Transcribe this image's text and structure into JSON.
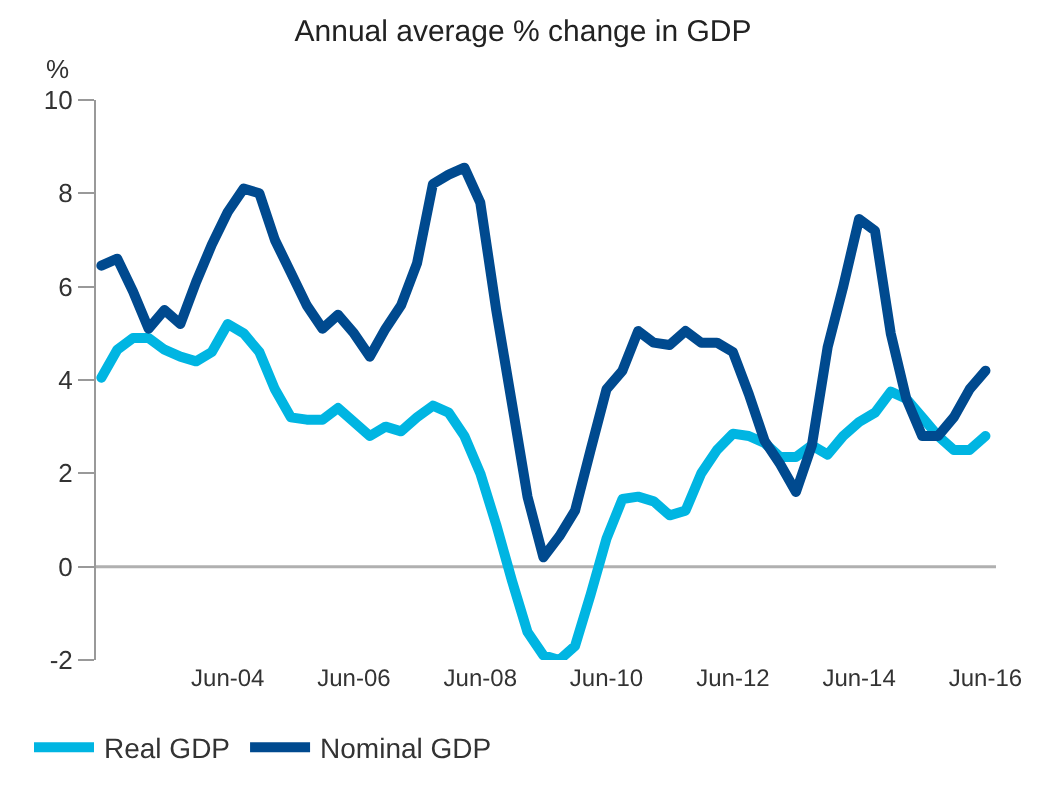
{
  "chart_data": {
    "type": "line",
    "title": "Annual average % change in GDP",
    "ylabel": "%",
    "x": [
      "2002-06",
      "2002-09",
      "2002-12",
      "2003-03",
      "2003-06",
      "2003-09",
      "2003-12",
      "2004-03",
      "2004-06",
      "2004-09",
      "2004-12",
      "2005-03",
      "2005-06",
      "2005-09",
      "2005-12",
      "2006-03",
      "2006-06",
      "2006-09",
      "2006-12",
      "2007-03",
      "2007-06",
      "2007-09",
      "2007-12",
      "2008-03",
      "2008-06",
      "2008-09",
      "2008-12",
      "2009-03",
      "2009-06",
      "2009-09",
      "2009-12",
      "2010-03",
      "2010-06",
      "2010-09",
      "2010-12",
      "2011-03",
      "2011-06",
      "2011-09",
      "2011-12",
      "2012-03",
      "2012-06",
      "2012-09",
      "2012-12",
      "2013-03",
      "2013-06",
      "2013-09",
      "2013-12",
      "2014-03",
      "2014-06",
      "2014-09",
      "2014-12",
      "2015-03",
      "2015-06",
      "2015-09",
      "2015-12",
      "2016-03",
      "2016-06"
    ],
    "series": [
      {
        "name": "Real GDP",
        "color": "#00b5e2",
        "values": [
          4.05,
          4.65,
          4.9,
          4.9,
          4.65,
          4.5,
          4.4,
          4.6,
          5.2,
          5.0,
          4.6,
          3.8,
          3.2,
          3.15,
          3.15,
          3.4,
          3.1,
          2.8,
          3.0,
          2.9,
          3.2,
          3.45,
          3.3,
          2.8,
          2.0,
          0.9,
          -0.3,
          -1.4,
          -1.9,
          -2.0,
          -1.7,
          -0.6,
          0.6,
          1.45,
          1.5,
          1.4,
          1.1,
          1.2,
          2.0,
          2.5,
          2.85,
          2.8,
          2.65,
          2.35,
          2.35,
          2.6,
          2.4,
          2.8,
          3.1,
          3.3,
          3.75,
          3.6,
          3.2,
          2.8,
          2.5,
          2.5,
          2.8
        ]
      },
      {
        "name": "Nominal GDP",
        "color": "#004a8f",
        "values": [
          6.45,
          6.6,
          5.9,
          5.1,
          5.5,
          5.2,
          6.1,
          6.9,
          7.6,
          8.1,
          8.0,
          7.0,
          6.3,
          5.6,
          5.1,
          5.4,
          5.0,
          4.5,
          5.1,
          5.6,
          6.5,
          8.2,
          8.4,
          8.55,
          7.8,
          5.5,
          3.5,
          1.5,
          0.2,
          0.65,
          1.2,
          2.5,
          3.8,
          4.2,
          5.05,
          4.8,
          4.75,
          5.05,
          4.8,
          4.8,
          4.6,
          3.7,
          2.7,
          2.2,
          1.6,
          2.6,
          4.7,
          6.0,
          7.45,
          7.2,
          5.0,
          3.6,
          2.8,
          2.8,
          3.2,
          3.8,
          4.2
        ]
      }
    ],
    "xlim": [
      "2002-05",
      "2016-08"
    ],
    "xticks": [
      {
        "value": "2004-06",
        "label": "Jun-04"
      },
      {
        "value": "2006-06",
        "label": "Jun-06"
      },
      {
        "value": "2008-06",
        "label": "Jun-08"
      },
      {
        "value": "2010-06",
        "label": "Jun-10"
      },
      {
        "value": "2012-06",
        "label": "Jun-12"
      },
      {
        "value": "2014-06",
        "label": "Jun-14"
      },
      {
        "value": "2016-06",
        "label": "Jun-16"
      }
    ],
    "ylim": [
      -2,
      10
    ],
    "yticks": [
      -2,
      0,
      2,
      4,
      6,
      8,
      10
    ],
    "ref_lines": [
      {
        "axis": "y",
        "value": 0,
        "color": "#b0b0b0"
      }
    ],
    "grid": false,
    "legend": "bottom left",
    "marker": "none",
    "line_style": "solid"
  }
}
